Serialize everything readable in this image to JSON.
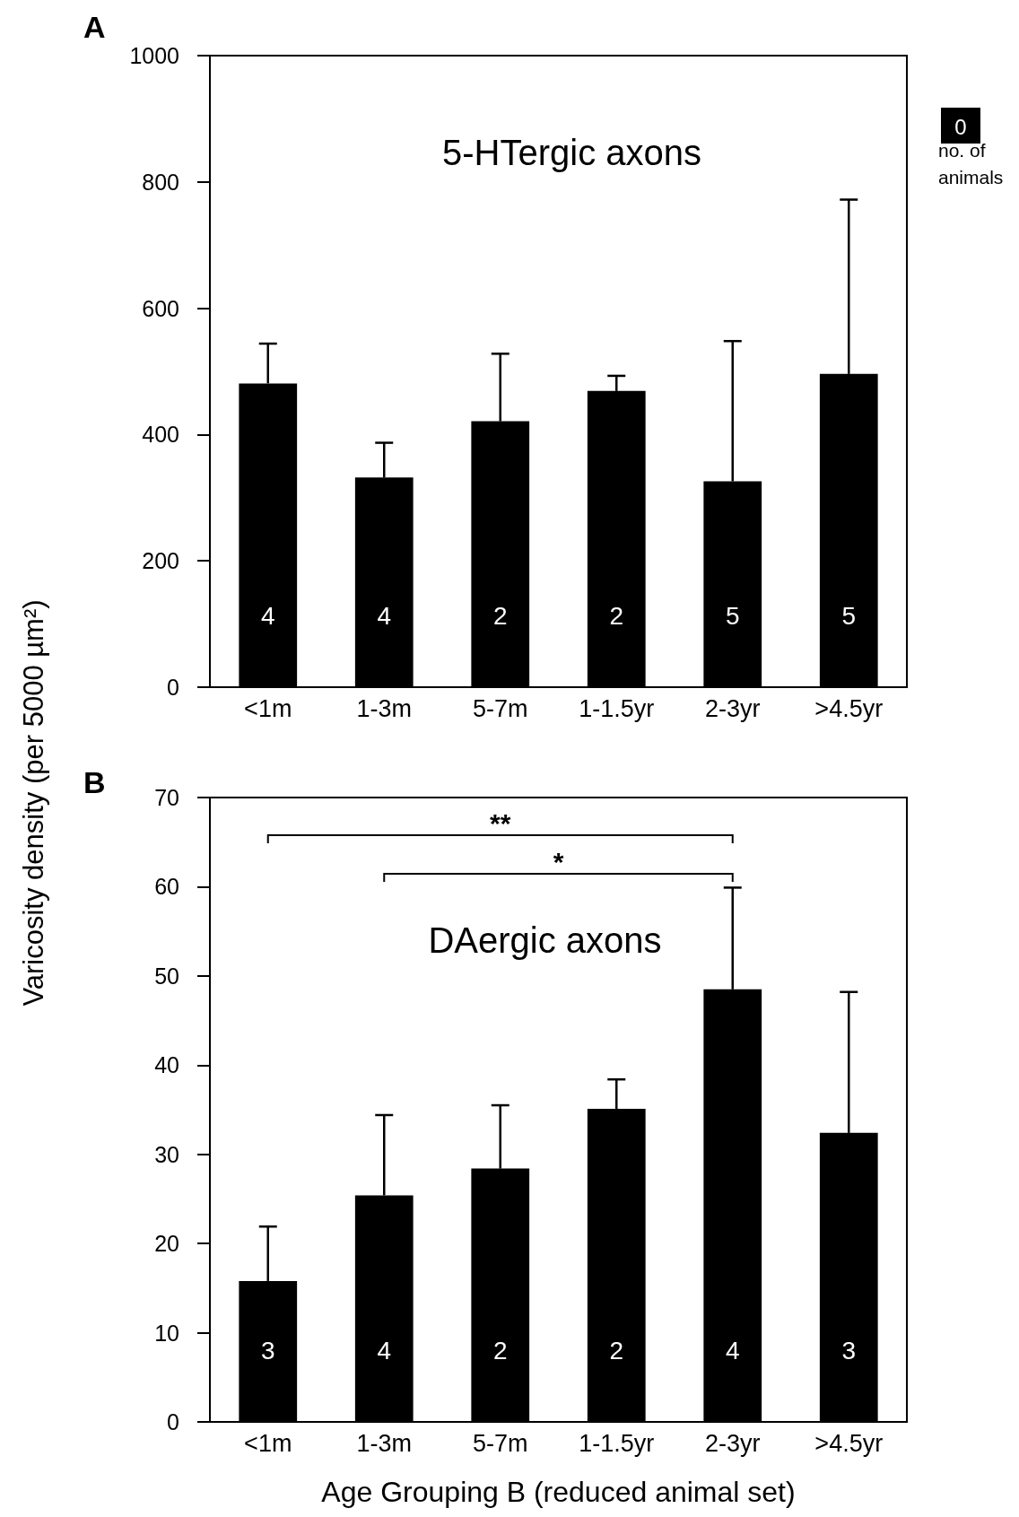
{
  "chart_data": [
    {
      "type": "bar",
      "title": "A",
      "ylabel": "Varicosity density (per 5000 µm²)",
      "categories": [
        "<1m",
        "1-3m",
        "5-7m",
        "1-1.5yr",
        "2-3yr",
        ">4.5yr"
      ],
      "values": [
        481,
        332,
        421,
        469,
        326,
        496
      ],
      "errors": [
        [
          481,
          544
        ],
        [
          332,
          387
        ],
        [
          421,
          528
        ],
        [
          469,
          493
        ],
        [
          326,
          548
        ],
        [
          496,
          772
        ]
      ],
      "color": "#000000",
      "ylim": [
        0,
        1000
      ],
      "yticks": [
        0,
        200,
        400,
        600,
        800,
        1000
      ],
      "grid": false,
      "annotations": [
        "5-HTergic axons",
        "0",
        "no. of animals",
        "4",
        "4",
        "2",
        "2",
        "5",
        "5"
      ]
    },
    {
      "type": "bar",
      "title": "B",
      "xlabel": "Age Grouping B (reduced animal set)",
      "categories": [
        "<1m",
        "1-3m",
        "5-7m",
        "1-1.5yr",
        "2-3yr",
        ">4.5yr"
      ],
      "values": [
        15.8,
        25.4,
        28.4,
        35.1,
        48.5,
        32.4
      ],
      "errors": [
        [
          15.8,
          21.9
        ],
        [
          25.4,
          34.4
        ],
        [
          28.4,
          35.5
        ],
        [
          35.1,
          38.4
        ],
        [
          48.5,
          59.9
        ],
        [
          32.4,
          48.2
        ]
      ],
      "color": "#000000",
      "ylim": [
        0,
        70
      ],
      "yticks": [
        0,
        10,
        20,
        30,
        40,
        50,
        60,
        70
      ],
      "grid": false,
      "annotations": [
        "DAergic axons",
        "**",
        "*",
        "3",
        "4",
        "2",
        "2",
        "4",
        "3"
      ]
    }
  ]
}
